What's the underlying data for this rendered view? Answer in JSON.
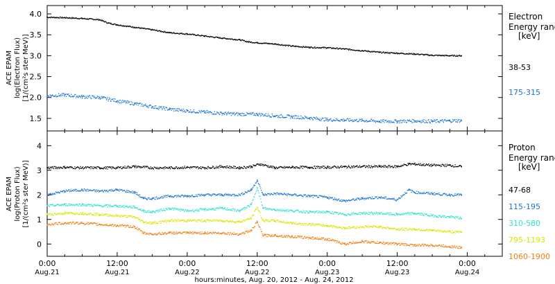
{
  "chart_data": [
    {
      "type": "scatter",
      "panel": "electron",
      "ylabel_lines": [
        "ACE EPAM",
        "log(Electron Flux)",
        "[1/(cm²s ster MeV)]"
      ],
      "ylim": [
        1.2,
        4.2
      ],
      "yticks": [
        1.5,
        2.0,
        2.5,
        3.0,
        3.5,
        4.0
      ],
      "ytick_labels": [
        "1.5",
        "2.0",
        "2.5",
        "3.0",
        "3.5",
        "4.0"
      ],
      "legend_title_lines": [
        "Electron",
        "Energy ranges",
        "[keV]"
      ],
      "series": [
        {
          "name": "38-53",
          "color": "#000000",
          "x_hours": [
            0,
            3,
            6,
            9,
            10.5,
            12,
            15,
            18,
            21,
            24,
            27,
            30,
            33,
            34.5,
            36,
            39,
            42,
            45,
            48,
            51,
            54,
            57,
            60,
            63,
            66,
            69,
            71
          ],
          "values": [
            3.92,
            3.91,
            3.89,
            3.86,
            3.78,
            3.74,
            3.68,
            3.62,
            3.55,
            3.52,
            3.47,
            3.42,
            3.38,
            3.33,
            3.31,
            3.28,
            3.23,
            3.2,
            3.19,
            3.16,
            3.12,
            3.08,
            3.06,
            3.04,
            3.01,
            3.0,
            3.0
          ]
        },
        {
          "name": "175-315",
          "color": "#1a75d1",
          "x_hours": [
            0,
            3,
            6,
            9,
            12,
            15,
            18,
            21,
            24,
            27,
            30,
            33,
            36,
            39,
            42,
            45,
            48,
            51,
            54,
            57,
            60,
            63,
            66,
            69,
            71
          ],
          "values": [
            2.04,
            2.06,
            2.02,
            2.0,
            1.92,
            1.85,
            1.78,
            1.72,
            1.68,
            1.65,
            1.62,
            1.6,
            1.6,
            1.56,
            1.54,
            1.51,
            1.47,
            1.46,
            1.45,
            1.43,
            1.43,
            1.44,
            1.43,
            1.44,
            1.45
          ]
        }
      ]
    },
    {
      "type": "scatter",
      "panel": "proton",
      "ylabel_lines": [
        "ACE EPAM",
        "log(Proton Flux)",
        "[1/(cm²s ster MeV)]"
      ],
      "ylim": [
        -0.5,
        4.6
      ],
      "yticks": [
        0,
        1,
        2,
        3,
        4
      ],
      "ytick_labels": [
        "0",
        "1",
        "2",
        "3",
        "4"
      ],
      "legend_title_lines": [
        "Proton",
        "Energy ranges",
        "[keV]"
      ],
      "series": [
        {
          "name": "47-68",
          "color": "#000000",
          "x_hours": [
            0,
            3,
            6,
            9,
            12,
            15,
            18,
            21,
            24,
            27,
            30,
            33,
            35,
            36.5,
            39,
            42,
            45,
            48,
            51,
            54,
            57,
            60,
            62,
            63,
            66,
            69,
            71
          ],
          "values": [
            3.1,
            3.12,
            3.1,
            3.1,
            3.1,
            3.15,
            3.1,
            3.1,
            3.12,
            3.1,
            3.15,
            3.1,
            3.15,
            3.25,
            3.1,
            3.12,
            3.12,
            3.12,
            3.14,
            3.15,
            3.15,
            3.15,
            3.25,
            3.25,
            3.2,
            3.2,
            3.15
          ]
        },
        {
          "name": "115-195",
          "color": "#1a75d1",
          "x_hours": [
            0,
            3,
            6,
            9,
            12,
            15,
            16.5,
            18,
            21,
            24,
            27,
            30,
            33,
            35,
            36,
            37,
            39,
            42,
            45,
            48,
            51,
            54,
            57,
            60,
            62,
            63,
            66,
            69,
            71
          ],
          "values": [
            2.0,
            2.15,
            2.2,
            2.15,
            2.2,
            2.1,
            1.85,
            1.85,
            1.95,
            1.95,
            2.0,
            2.0,
            2.0,
            2.2,
            2.6,
            2.0,
            2.05,
            2.0,
            1.95,
            1.9,
            1.75,
            1.85,
            1.9,
            1.8,
            2.2,
            2.1,
            2.05,
            2.0,
            2.0
          ]
        },
        {
          "name": "310-580",
          "color": "#2ee0d0",
          "x_hours": [
            0,
            3,
            6,
            9,
            12,
            15,
            16.5,
            18,
            21,
            24,
            27,
            30,
            33,
            35,
            36,
            37,
            39,
            42,
            45,
            48,
            51,
            54,
            57,
            60,
            63,
            66,
            69,
            71
          ],
          "values": [
            1.55,
            1.6,
            1.6,
            1.55,
            1.55,
            1.5,
            1.35,
            1.3,
            1.45,
            1.35,
            1.4,
            1.45,
            1.35,
            1.6,
            2.3,
            1.45,
            1.4,
            1.35,
            1.3,
            1.3,
            1.2,
            1.25,
            1.25,
            1.2,
            1.25,
            1.15,
            1.1,
            1.05
          ]
        },
        {
          "name": "795-1193",
          "color": "#d6e600",
          "x_hours": [
            0,
            3,
            6,
            9,
            12,
            15,
            16.5,
            18,
            21,
            24,
            27,
            30,
            33,
            35,
            36,
            37,
            39,
            42,
            45,
            48,
            51,
            54,
            57,
            60,
            63,
            66,
            69,
            71
          ],
          "values": [
            1.2,
            1.25,
            1.25,
            1.2,
            1.15,
            1.1,
            0.9,
            0.85,
            0.95,
            0.95,
            0.95,
            0.95,
            0.9,
            1.05,
            1.5,
            0.95,
            0.95,
            0.85,
            0.8,
            0.75,
            0.65,
            0.7,
            0.7,
            0.6,
            0.6,
            0.55,
            0.5,
            0.48
          ]
        },
        {
          "name": "1060-1900",
          "color": "#f07c10",
          "x_hours": [
            0,
            3,
            6,
            9,
            12,
            15,
            16.5,
            18,
            21,
            24,
            27,
            30,
            33,
            35,
            36,
            37,
            39,
            42,
            45,
            48,
            51,
            54,
            57,
            60,
            63,
            66,
            69,
            71
          ],
          "values": [
            0.8,
            0.85,
            0.85,
            0.8,
            0.75,
            0.7,
            0.45,
            0.4,
            0.45,
            0.45,
            0.45,
            0.45,
            0.4,
            0.55,
            0.9,
            0.35,
            0.35,
            0.3,
            0.25,
            0.2,
            0.0,
            0.1,
            0.05,
            0.0,
            -0.05,
            -0.05,
            -0.1,
            -0.15
          ]
        }
      ]
    }
  ],
  "x_axis": {
    "xlim": [
      0,
      78
    ],
    "ticks": [
      0,
      12,
      24,
      36,
      48,
      60,
      72
    ],
    "tick_labels": [
      {
        "time": "0:00",
        "date": "Aug.21"
      },
      {
        "time": "12:00",
        "date": "Aug.21"
      },
      {
        "time": "0:00",
        "date": "Aug.22"
      },
      {
        "time": "12:00",
        "date": "Aug.22"
      },
      {
        "time": "0:00",
        "date": "Aug.23"
      },
      {
        "time": "12:00",
        "date": "Aug.23"
      },
      {
        "time": "0:00",
        "date": "Aug.24"
      }
    ],
    "xlabel": "hours:minutes, Aug. 20, 2012 - Aug. 24, 2012"
  }
}
